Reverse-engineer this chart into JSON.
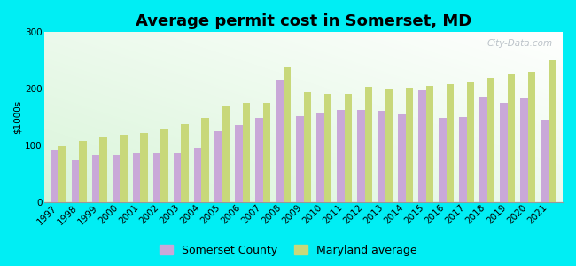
{
  "title": "Average permit cost in Somerset, MD",
  "ylabel": "$1000s",
  "years": [
    1997,
    1998,
    1999,
    2000,
    2001,
    2002,
    2003,
    2004,
    2005,
    2006,
    2007,
    2008,
    2009,
    2010,
    2011,
    2012,
    2013,
    2014,
    2015,
    2016,
    2017,
    2018,
    2019,
    2020,
    2021
  ],
  "somerset": [
    92,
    75,
    82,
    82,
    85,
    87,
    87,
    95,
    125,
    135,
    148,
    215,
    152,
    158,
    162,
    163,
    160,
    155,
    198,
    148,
    150,
    185,
    175,
    182,
    145
  ],
  "maryland": [
    98,
    108,
    115,
    118,
    122,
    128,
    138,
    148,
    168,
    175,
    175,
    238,
    193,
    190,
    190,
    203,
    200,
    202,
    205,
    208,
    213,
    218,
    225,
    230,
    250
  ],
  "somerset_color": "#c9a8d8",
  "maryland_color": "#c8d87a",
  "background_color": "#00eef4",
  "ylim": [
    0,
    300
  ],
  "yticks": [
    0,
    100,
    200,
    300
  ],
  "bar_width": 0.37,
  "title_fontsize": 13,
  "axis_fontsize": 7.5,
  "legend_fontsize": 9,
  "watermark": "City-Data.com"
}
